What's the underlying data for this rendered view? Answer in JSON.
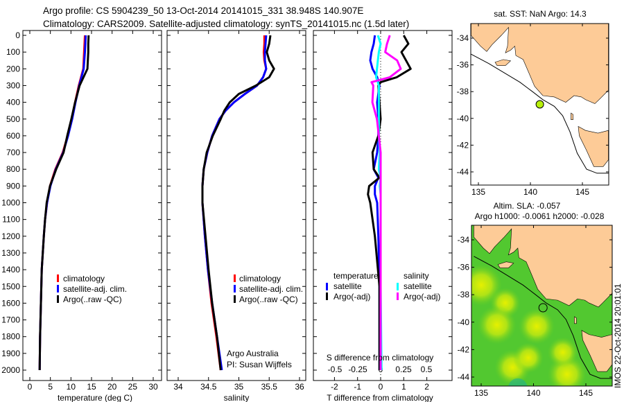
{
  "header": {
    "title_line1": "Argo profile: CS 5904239_50 13-Oct-2014 20141015_331 38.948S 140.907E",
    "title_line2": "Climatology: CARS2009. Satellite-adjusted climatology: synTS_20141015.nc (1.5d later)"
  },
  "colors": {
    "climatology": "#ff0000",
    "satellite": "#0000ff",
    "argo": "#000000",
    "satellite_s": "#00ffff",
    "argo_s": "#ff00ff",
    "land": "#fdcb97",
    "argo_point": "#b7f00a"
  },
  "chart_data": [
    {
      "type": "line",
      "name": "temperature",
      "xlabel": "temperature (deg C)",
      "xlim": [
        -1.7,
        32
      ],
      "xticks": [
        0,
        5,
        10,
        15,
        20,
        25,
        30
      ],
      "ylim": [
        0,
        2070
      ],
      "yticks": [
        0,
        100,
        200,
        300,
        400,
        500,
        600,
        700,
        800,
        900,
        1000,
        1100,
        1200,
        1300,
        1400,
        1500,
        1600,
        1700,
        1800,
        1900,
        2000
      ],
      "legend": [
        "climatology",
        "satellite-adj. clim.",
        "Argo(..raw -QC)"
      ],
      "depth": [
        0,
        50,
        100,
        200,
        300,
        400,
        500,
        600,
        700,
        800,
        900,
        1000,
        1100,
        1200,
        1400,
        1600,
        1800,
        2000
      ],
      "series": [
        {
          "name": "climatology",
          "color": "#ff0000",
          "values": [
            13.4,
            13.3,
            13.2,
            13.0,
            11.9,
            11.0,
            10.2,
            9.2,
            8.0,
            6.2,
            4.9,
            4.2,
            3.7,
            3.4,
            2.9,
            2.7,
            2.5,
            2.4
          ]
        },
        {
          "name": "satellite-adj. clim.",
          "color": "#0000ff",
          "values": [
            13.6,
            13.5,
            13.4,
            13.1,
            12.0,
            11.1,
            10.3,
            9.3,
            8.1,
            6.3,
            5.0,
            4.2,
            3.7,
            3.4,
            2.9,
            2.7,
            2.5,
            2.4
          ]
        },
        {
          "name": "Argo(..raw -QC)",
          "color": "#000000",
          "values": [
            14.3,
            14.2,
            14.2,
            14.0,
            12.1,
            11.0,
            10.1,
            9.1,
            8.2,
            6.4,
            4.9,
            4.1,
            3.7,
            3.4,
            2.9,
            2.7,
            2.5,
            2.4
          ]
        }
      ]
    },
    {
      "type": "line",
      "name": "salinity",
      "xlabel": "salinity",
      "xlim": [
        33.8,
        36.1
      ],
      "xticks": [
        34,
        34.5,
        35,
        35.5,
        36
      ],
      "ylim": [
        0,
        2070
      ],
      "yticks": [],
      "legend": [
        "climatology",
        "satellite-adj. clim.",
        "Argo(..raw -QC)"
      ],
      "annotation": [
        "Argo Australia",
        "PI: Susan Wijffels"
      ],
      "depth": [
        0,
        50,
        100,
        150,
        200,
        250,
        300,
        350,
        400,
        450,
        500,
        600,
        700,
        800,
        900,
        1000,
        1200,
        1400,
        1600,
        1800,
        2000
      ],
      "series": [
        {
          "name": "climatology",
          "color": "#ff0000",
          "values": [
            35.42,
            35.42,
            35.41,
            35.42,
            35.45,
            35.4,
            35.3,
            35.1,
            34.92,
            34.78,
            34.68,
            34.56,
            34.48,
            34.42,
            34.4,
            34.4,
            34.44,
            34.49,
            34.55,
            34.63,
            34.7
          ]
        },
        {
          "name": "satellite-adj. clim.",
          "color": "#0000ff",
          "values": [
            35.45,
            35.44,
            35.43,
            35.43,
            35.45,
            35.4,
            35.3,
            35.1,
            34.92,
            34.78,
            34.68,
            34.56,
            34.48,
            34.42,
            34.4,
            34.4,
            34.44,
            34.49,
            34.56,
            34.64,
            34.72
          ]
        },
        {
          "name": "Argo(..raw -QC)",
          "color": "#000000",
          "values": [
            35.52,
            35.5,
            35.46,
            35.5,
            35.58,
            35.5,
            35.28,
            35.0,
            34.85,
            34.76,
            34.7,
            34.57,
            34.47,
            34.42,
            34.4,
            34.4,
            34.45,
            34.5,
            34.56,
            34.64,
            34.7
          ]
        }
      ]
    },
    {
      "type": "line",
      "name": "differences",
      "xlabel": "T difference from climatology",
      "xlabel_top": "S difference from climatology",
      "xlim": [
        -3,
        3
      ],
      "xticks": [
        -2,
        -1,
        0,
        1,
        2
      ],
      "s_xticks": [
        -0.5,
        -0.25,
        0,
        0.25,
        0.5
      ],
      "s_xticks_labels": [
        "-0.5",
        "-0.25",
        "0",
        "0.25",
        "0.5"
      ],
      "ylim": [
        0,
        2070
      ],
      "legend_left_title": "temperature",
      "legend_right_title": "salinity",
      "legend": [
        "satellite",
        "Argo(-adj)",
        "satellite",
        "Argo(-adj)"
      ],
      "depth": [
        0,
        50,
        100,
        150,
        200,
        250,
        280,
        300,
        400,
        500,
        600,
        700,
        800,
        850,
        900,
        950,
        1000,
        1200,
        1500,
        2000
      ],
      "series": [
        {
          "name": "T satellite",
          "unit": "T",
          "color": "#0000ff",
          "values": [
            -0.25,
            -0.3,
            -0.4,
            -0.45,
            -0.35,
            -0.15,
            -0.1,
            -0.05,
            -0.15,
            -0.1,
            -0.1,
            -0.15,
            -0.3,
            -0.1,
            -0.25,
            -0.25,
            -0.15,
            -0.1,
            -0.05,
            -0.05
          ]
        },
        {
          "name": "T Argo(-adj)",
          "unit": "T",
          "color": "#000000",
          "values": [
            1.0,
            1.2,
            0.9,
            1.1,
            1.3,
            0.7,
            0.0,
            -0.1,
            -0.05,
            0.0,
            -0.1,
            -0.35,
            -0.3,
            -0.05,
            -0.5,
            -0.55,
            -0.45,
            -0.25,
            -0.05,
            -0.05
          ]
        },
        {
          "name": "S satellite",
          "unit": "S",
          "color": "#00ffff",
          "values": [
            -0.03,
            0.0,
            -0.02,
            -0.03,
            -0.04,
            -0.05,
            -0.03,
            -0.02,
            -0.02,
            -0.02,
            -0.02,
            -0.01,
            -0.02,
            0.0,
            -0.01,
            0.0,
            0.0,
            0.0,
            0.0,
            0.01
          ]
        },
        {
          "name": "S Argo(-adj)",
          "unit": "S",
          "color": "#ff00ff",
          "values": [
            0.1,
            0.07,
            0.05,
            0.18,
            0.22,
            0.1,
            -0.1,
            -0.08,
            -0.09,
            -0.04,
            -0.02,
            0.0,
            0.0,
            0.0,
            0.0,
            0.0,
            0.0,
            0.0,
            0.0,
            0.0
          ]
        }
      ]
    }
  ],
  "maps": {
    "sst": {
      "title": "sat. SST: NaN Argo: 14.3",
      "xticks": [
        "135",
        "140",
        "145"
      ],
      "yticks": [
        "-34",
        "-36",
        "-38",
        "-40",
        "-42",
        "-44"
      ],
      "argo_lon": 140.907,
      "argo_lat": -38.948
    },
    "sla": {
      "title_line1": "Altim. SLA: -0.057",
      "title_line2": "Argo h1000: -0.0061 h2000: -0.028",
      "xticks": [
        "135",
        "140",
        "145"
      ],
      "yticks": [
        "-34",
        "-36",
        "-38",
        "-40",
        "-42",
        "-44"
      ],
      "credit": "IMOS 22-Oct-2014 20:01:01"
    }
  }
}
